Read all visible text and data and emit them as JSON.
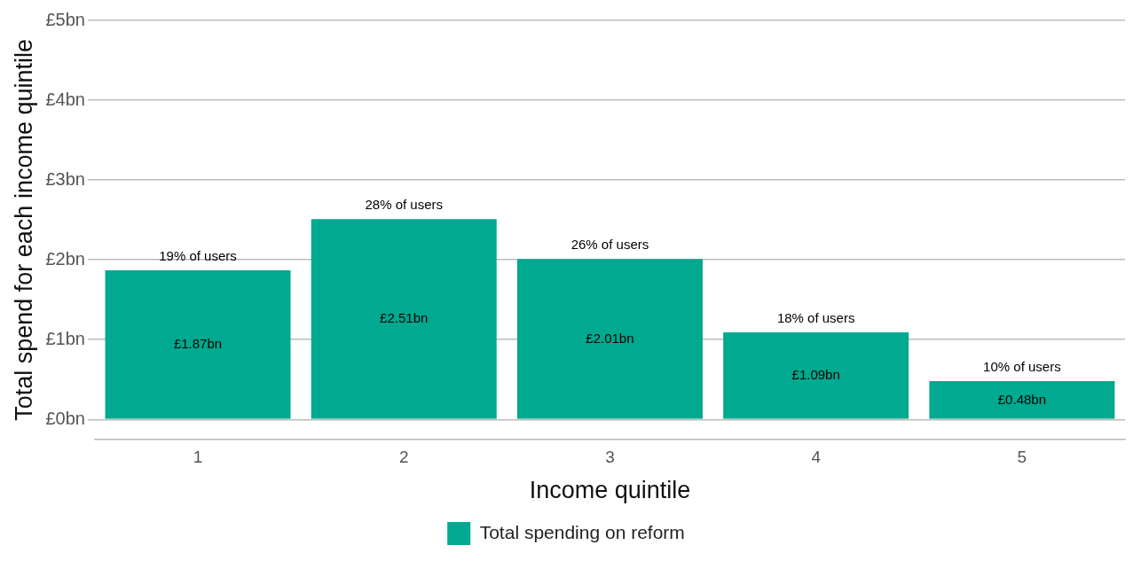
{
  "chart_data": {
    "type": "bar",
    "xlabel": "Income quintile",
    "ylabel": "Total spend for each income quintile",
    "categories": [
      "1",
      "2",
      "3",
      "4",
      "5"
    ],
    "series": [
      {
        "name": "Total spending on reform",
        "color": "#00a98f",
        "values": [
          1.87,
          2.51,
          2.01,
          1.09,
          0.48
        ],
        "value_labels": [
          "£1.87bn",
          "£2.51bn",
          "£2.01bn",
          "£1.09bn",
          "£0.48bn"
        ]
      }
    ],
    "ylim": [
      -0.25,
      5
    ],
    "yticks": [
      {
        "value": 0,
        "label": "£0bn"
      },
      {
        "value": 1,
        "label": "£1bn"
      },
      {
        "value": 2,
        "label": "£2bn"
      },
      {
        "value": 3,
        "label": "£3bn"
      },
      {
        "value": 4,
        "label": "£4bn"
      },
      {
        "value": 5,
        "label": "£5bn"
      }
    ],
    "annotations": [
      {
        "text": "19% of users",
        "x": "1",
        "y": 1.87
      },
      {
        "text": "28% of users",
        "x": "2",
        "y": 2.51
      },
      {
        "text": "26% of users",
        "x": "3",
        "y": 2.01
      },
      {
        "text": "18% of users",
        "x": "4",
        "y": 1.09
      },
      {
        "text": "10% of users",
        "x": "5",
        "y": 0.48
      }
    ],
    "grid": "y",
    "legend": "bottom"
  }
}
